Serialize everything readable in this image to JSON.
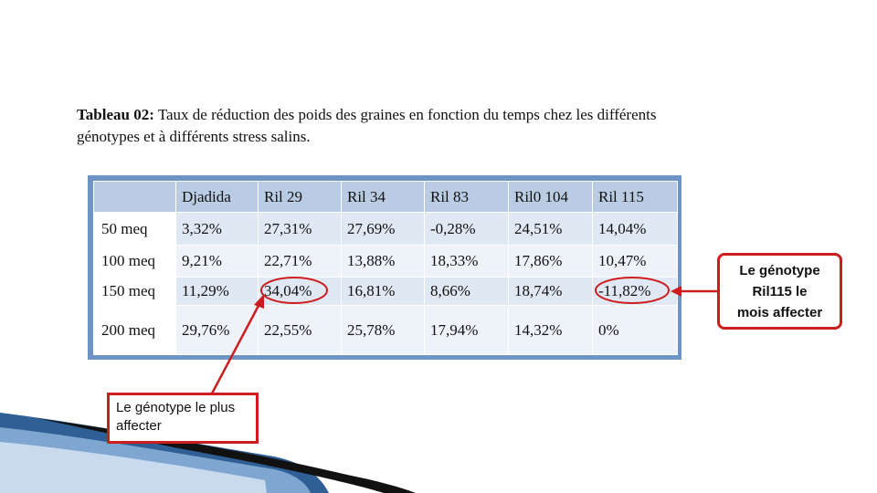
{
  "caption": {
    "label": "Tableau 02:",
    "text": " Taux de réduction des poids des graines  en fonction du temps chez les différents génotypes et à différents stress salins."
  },
  "table": {
    "columns": [
      "",
      "Djadida",
      "Ril 29",
      "Ril 34",
      "Ril 83",
      "Ril0 104",
      "Ril 115"
    ],
    "rows": [
      [
        "50 meq",
        "3,32%",
        "27,31%",
        "27,69%",
        "-0,28%",
        "24,51%",
        "14,04%"
      ],
      [
        "100 meq",
        "9,21%",
        "22,71%",
        "13,88%",
        "18,33%",
        "17,86%",
        "10,47%"
      ],
      [
        "150 meq",
        "11,29%",
        "34,04%",
        "16,81%",
        "8,66%",
        "18,74%",
        "-11,82%"
      ],
      [
        "200 meq",
        "29,76%",
        "22,55%",
        "25,78%",
        "17,94%",
        "14,32%",
        "0%"
      ]
    ]
  },
  "annotations": {
    "left": "Le génotype le plus affecter",
    "right_line1": "Le génotype",
    "right_line2": "Ril115 le",
    "right_line3": "mois affecter"
  },
  "colors": {
    "frame": "#6e94c6",
    "header_cell": "#b9cce4",
    "odd_row": "#dfe8f3",
    "even_row": "#eef3f9",
    "annotation_red": "#cc1e1e"
  }
}
